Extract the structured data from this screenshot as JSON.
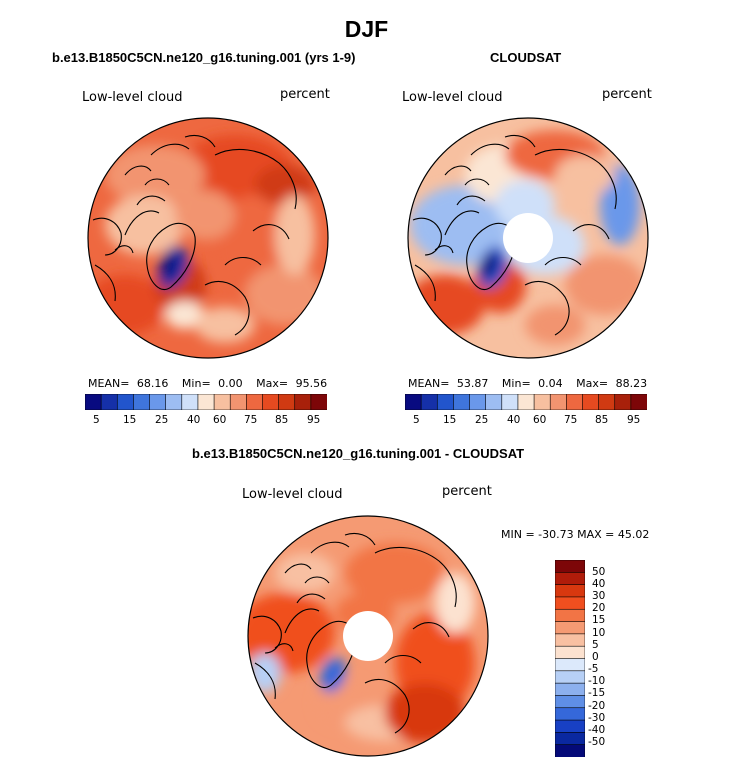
{
  "header": {
    "title": "DJF"
  },
  "colors": {
    "abs_palette": [
      "#080a80",
      "#1530a8",
      "#2255cc",
      "#3f75dc",
      "#6a98ea",
      "#9dbdf2",
      "#cfe0f9",
      "#fbe6d4",
      "#f7c0a0",
      "#f29470",
      "#ee6840",
      "#e64a20",
      "#d03a12",
      "#a8200a",
      "#7d0608"
    ],
    "diff_palette": [
      "#7d0608",
      "#b01c0a",
      "#d8380f",
      "#f04f1f",
      "#f27445",
      "#f59a73",
      "#f8c0a2",
      "#fce2d0",
      "#dce9fb",
      "#b7d0f6",
      "#8cb0ee",
      "#5f8fe6",
      "#3568da",
      "#1840c4",
      "#0a28a0",
      "#040a78"
    ],
    "land_white": "#ffffff"
  },
  "chart_data": [
    {
      "type": "heatmap",
      "title": "b.e13.B1850C5CN.ne120_g16.tuning.001 (yrs 1-9)",
      "variable_label": "Low-level cloud",
      "units_label": "percent",
      "stats": {
        "mean_label": "MEAN=",
        "mean": "68.16",
        "min_label": "Min=",
        "min": "0.00",
        "max_label": "Max=",
        "max": "95.56"
      },
      "colorbar_ticks": [
        "5",
        "15",
        "25",
        "40",
        "60",
        "75",
        "85",
        "95"
      ],
      "colorbar_levels": [
        5,
        10,
        15,
        20,
        25,
        30,
        40,
        50,
        60,
        70,
        75,
        80,
        85,
        90,
        95
      ],
      "projection": "north-polar-stereographic"
    },
    {
      "type": "heatmap",
      "title": "CLOUDSAT",
      "variable_label": "Low-level cloud",
      "units_label": "percent",
      "stats": {
        "mean_label": "MEAN=",
        "mean": "53.87",
        "min_label": "Min=",
        "min": "0.04",
        "max_label": "Max=",
        "max": "88.23"
      },
      "colorbar_ticks": [
        "5",
        "15",
        "25",
        "40",
        "60",
        "75",
        "85",
        "95"
      ],
      "colorbar_levels": [
        5,
        10,
        15,
        20,
        25,
        30,
        40,
        50,
        60,
        70,
        75,
        80,
        85,
        90,
        95
      ],
      "projection": "north-polar-stereographic",
      "polar_gap": true
    },
    {
      "type": "heatmap",
      "title": "b.e13.B1850C5CN.ne120_g16.tuning.001 - CLOUDSAT",
      "variable_label": "Low-level cloud",
      "units_label": "percent",
      "stats_text": "MIN = -30.73 MAX =  45.02",
      "colorbar_ticks": [
        "50",
        "40",
        "30",
        "20",
        "15",
        "10",
        "5",
        "0",
        "-5",
        "-10",
        "-15",
        "-20",
        "-30",
        "-40",
        "-50"
      ],
      "projection": "north-polar-stereographic",
      "polar_gap": true
    }
  ]
}
